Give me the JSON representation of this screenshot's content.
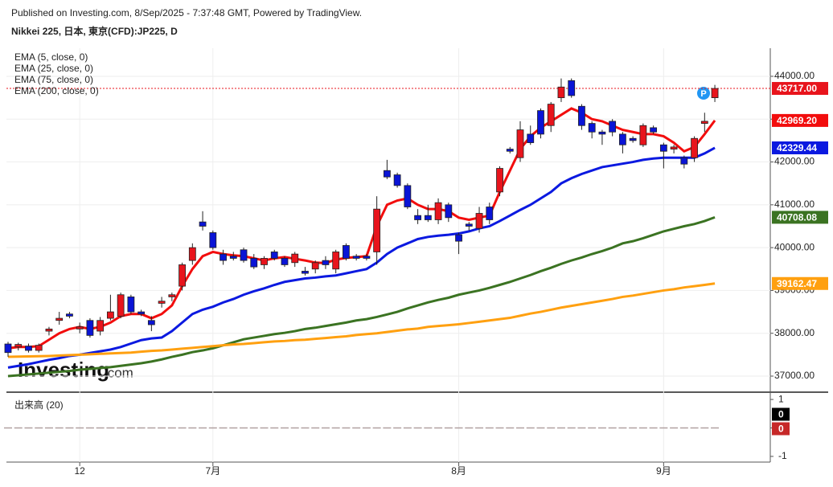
{
  "header": {
    "published": "Published on Investing.com, 8/Sep/2025 - 7:37:48 GMT, Powered by TradingView.",
    "symbol": "Nikkei 225, 日本, 東京(CFD):JP225, D",
    "watermark_brand": "Investing",
    "watermark_suffix": ".com"
  },
  "chart_data": [
    {
      "type": "candlestick",
      "categories": [
        null,
        null,
        null,
        null,
        null,
        null,
        null,
        "12",
        null,
        null,
        null,
        null,
        null,
        null,
        null,
        null,
        null,
        null,
        null,
        null,
        "7月",
        null,
        null,
        null,
        null,
        null,
        null,
        null,
        null,
        null,
        null,
        null,
        null,
        null,
        null,
        null,
        null,
        null,
        null,
        null,
        null,
        null,
        null,
        null,
        "8月",
        null,
        null,
        null,
        null,
        null,
        null,
        null,
        null,
        null,
        null,
        null,
        null,
        null,
        null,
        null,
        null,
        null,
        null,
        null,
        "9月",
        null,
        null,
        null,
        null,
        null
      ],
      "open": [
        37750,
        37680,
        37700,
        37600,
        38050,
        38300,
        38450,
        38100,
        38300,
        38050,
        38350,
        38400,
        38850,
        38500,
        38300,
        38700,
        38850,
        39100,
        39700,
        40600,
        40350,
        39850,
        39800,
        39950,
        39750,
        39600,
        39900,
        39750,
        39650,
        39450,
        39500,
        39700,
        39500,
        40050,
        39800,
        39800,
        39900,
        41800,
        41700,
        41450,
        40750,
        40750,
        40650,
        41000,
        40300,
        40550,
        40450,
        40950,
        41300,
        42300,
        42100,
        42650,
        43200,
        42850,
        43500,
        43900,
        43300,
        42900,
        42700,
        42950,
        42650,
        42550,
        42400,
        42800,
        42400,
        42300,
        42100,
        42100,
        42900,
        43500
      ],
      "high": [
        37800,
        37780,
        37760,
        37760,
        38150,
        38500,
        38500,
        38250,
        38350,
        38380,
        38900,
        38950,
        38900,
        38550,
        38400,
        38850,
        38950,
        39650,
        40100,
        40850,
        40400,
        39950,
        39900,
        40000,
        39850,
        39800,
        39950,
        39800,
        39900,
        39550,
        39700,
        39800,
        39950,
        40100,
        39850,
        39850,
        41200,
        42050,
        41750,
        41500,
        40900,
        41000,
        41150,
        41050,
        40350,
        40600,
        40950,
        41050,
        41900,
        42350,
        42950,
        42850,
        43250,
        43400,
        43950,
        43950,
        43350,
        42950,
        42750,
        43000,
        42700,
        42600,
        42900,
        42850,
        42450,
        42400,
        42150,
        42600,
        43150,
        43800
      ],
      "low": [
        37450,
        37600,
        37550,
        37550,
        37950,
        38200,
        38350,
        38000,
        37900,
        37950,
        38300,
        38350,
        38450,
        38400,
        38050,
        38600,
        38750,
        39000,
        39600,
        40400,
        39950,
        39600,
        39700,
        39650,
        39500,
        39500,
        39700,
        39550,
        39550,
        39350,
        39400,
        39500,
        39400,
        39700,
        39700,
        39700,
        39600,
        41600,
        41400,
        40900,
        40550,
        40600,
        40550,
        40600,
        39850,
        40400,
        40350,
        40550,
        41200,
        42200,
        42000,
        42400,
        42550,
        42700,
        43400,
        43500,
        42750,
        42550,
        42400,
        42600,
        42200,
        42450,
        42350,
        42650,
        41850,
        42200,
        41850,
        42000,
        42700,
        43400
      ],
      "close": [
        37550,
        37740,
        37600,
        37720,
        38100,
        38350,
        38400,
        38150,
        37950,
        38300,
        38500,
        38900,
        38500,
        38450,
        38200,
        38750,
        38900,
        39600,
        40000,
        40500,
        40000,
        39700,
        39750,
        39700,
        39550,
        39750,
        39750,
        39600,
        39850,
        39400,
        39650,
        39600,
        39900,
        39750,
        39750,
        39750,
        40900,
        41650,
        41450,
        40950,
        40650,
        40650,
        41050,
        40700,
        40150,
        40500,
        40800,
        40650,
        41850,
        42250,
        42750,
        42450,
        42650,
        43350,
        43750,
        43550,
        42850,
        42700,
        42650,
        42700,
        42400,
        42500,
        42850,
        42700,
        42250,
        42350,
        41950,
        42550,
        42950,
        43717
      ],
      "up_color": "#e8141c",
      "down_color": "#0a14d6",
      "series": [
        {
          "name": "EMA (5, close, 0)",
          "color": "#f20d0d",
          "values": [
            37650,
            37680,
            37680,
            37700,
            37850,
            38000,
            38100,
            38150,
            38100,
            38150,
            38250,
            38400,
            38450,
            38450,
            38350,
            38450,
            38650,
            39100,
            39500,
            39800,
            39900,
            39850,
            39820,
            39800,
            39750,
            39700,
            39750,
            39780,
            39740,
            39700,
            39650,
            39640,
            39720,
            39760,
            39780,
            39800,
            40500,
            41000,
            41100,
            41150,
            41000,
            40900,
            40900,
            40850,
            40700,
            40650,
            40700,
            40750,
            41300,
            41800,
            42300,
            42600,
            42800,
            42950,
            43100,
            43250,
            43150,
            43000,
            42950,
            42850,
            42750,
            42700,
            42650,
            42650,
            42600,
            42450,
            42250,
            42350,
            42650,
            42969.2
          ]
        },
        {
          "name": "EMA (25, close, 0)",
          "color": "#0b19e0",
          "values": [
            37200,
            37240,
            37280,
            37330,
            37380,
            37420,
            37470,
            37500,
            37540,
            37580,
            37620,
            37680,
            37760,
            37840,
            37880,
            37900,
            38050,
            38250,
            38450,
            38550,
            38620,
            38720,
            38800,
            38900,
            38980,
            39050,
            39130,
            39200,
            39240,
            39280,
            39300,
            39330,
            39350,
            39400,
            39450,
            39500,
            39650,
            39850,
            40000,
            40100,
            40200,
            40250,
            40280,
            40300,
            40330,
            40380,
            40450,
            40500,
            40620,
            40750,
            40880,
            41000,
            41150,
            41300,
            41500,
            41620,
            41720,
            41800,
            41880,
            41920,
            41960,
            42000,
            42050,
            42080,
            42100,
            42100,
            42100,
            42100,
            42200,
            42329.44
          ]
        },
        {
          "name": "EMA (75, close, 0)",
          "color": "#3b7322",
          "values": [
            37000,
            37020,
            37040,
            37060,
            37080,
            37100,
            37120,
            37150,
            37170,
            37190,
            37210,
            37240,
            37270,
            37300,
            37340,
            37390,
            37450,
            37500,
            37560,
            37600,
            37650,
            37720,
            37790,
            37860,
            37900,
            37940,
            37980,
            38010,
            38050,
            38100,
            38130,
            38170,
            38210,
            38250,
            38300,
            38330,
            38380,
            38440,
            38500,
            38580,
            38650,
            38720,
            38780,
            38830,
            38900,
            38950,
            39000,
            39060,
            39130,
            39200,
            39280,
            39360,
            39450,
            39530,
            39620,
            39700,
            39770,
            39850,
            39920,
            40000,
            40100,
            40150,
            40220,
            40300,
            40380,
            40440,
            40500,
            40550,
            40620,
            40708.08
          ]
        },
        {
          "name": "EMA (200, close, 0)",
          "color": "#ffa010",
          "values": [
            37450,
            37455,
            37460,
            37465,
            37470,
            37480,
            37490,
            37500,
            37510,
            37520,
            37530,
            37540,
            37550,
            37570,
            37590,
            37600,
            37620,
            37640,
            37660,
            37680,
            37700,
            37720,
            37740,
            37750,
            37770,
            37790,
            37810,
            37820,
            37840,
            37850,
            37870,
            37890,
            37910,
            37930,
            37960,
            37980,
            38000,
            38030,
            38060,
            38090,
            38110,
            38150,
            38170,
            38190,
            38210,
            38240,
            38270,
            38300,
            38330,
            38360,
            38410,
            38460,
            38500,
            38550,
            38600,
            38640,
            38680,
            38720,
            38760,
            38800,
            38850,
            38880,
            38920,
            38960,
            39000,
            39030,
            39070,
            39100,
            39130,
            39162.47
          ]
        }
      ],
      "markers": [
        {
          "value": 43717,
          "label": "43717.00",
          "color": "#e8141c"
        },
        {
          "value": 42969.2,
          "label": "42969.20",
          "color": "#f20d0d"
        },
        {
          "value": 42329.44,
          "label": "42329.44",
          "color": "#0b19e0"
        },
        {
          "value": 40708.08,
          "label": "40708.08",
          "color": "#3b7322"
        },
        {
          "value": 39162.47,
          "label": "39162.47",
          "color": "#ffa010"
        }
      ],
      "ylim": [
        36625,
        44656
      ],
      "yticks": [
        {
          "value": 37000,
          "label": "37000.00"
        },
        {
          "value": 38000,
          "label": "38000.00"
        },
        {
          "value": 39000,
          "label": "39000.00"
        },
        {
          "value": 40000,
          "label": "40000.00"
        },
        {
          "value": 41000,
          "label": "41000.00"
        },
        {
          "value": 42000,
          "label": "42000.00"
        },
        {
          "value": 43000,
          "label": "43000.00"
        },
        {
          "value": 44000,
          "label": "44000.00"
        }
      ],
      "grid": true
    },
    {
      "type": "volume",
      "title": "出来高 (20)",
      "color": "#b0a0a0",
      "values": [
        0,
        0,
        0,
        0,
        0,
        0,
        0,
        0,
        0,
        0,
        0,
        0,
        0,
        0,
        0,
        0,
        0,
        0,
        0,
        0,
        0,
        0,
        0,
        0,
        0,
        0,
        0,
        0,
        0,
        0,
        0,
        0,
        0,
        0,
        0,
        0,
        0,
        0,
        0,
        0,
        0,
        0,
        0,
        0,
        0,
        0,
        0,
        0,
        0,
        0,
        0,
        0,
        0,
        0,
        0,
        0,
        0,
        0,
        0,
        0,
        0,
        0,
        0,
        0,
        0,
        0,
        0,
        0,
        0,
        0
      ],
      "markers": [
        {
          "value": 0,
          "color": "#000000"
        },
        {
          "value": 0,
          "color": "#c62828"
        }
      ],
      "ylim": [
        -1.2,
        1.2
      ],
      "yticks": [
        1,
        0,
        -1
      ]
    }
  ]
}
